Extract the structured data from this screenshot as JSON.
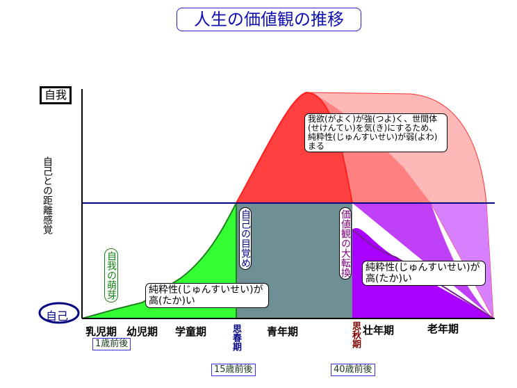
{
  "title": "人生の価値観の推移",
  "y_axis": {
    "top_label": "自我",
    "bottom_label": "自己",
    "axis_title": "自己との距離感覚"
  },
  "stages": [
    "乳児期",
    "幼児期",
    "学童期",
    "思春期",
    "青年期",
    "思秋期",
    "壮年期",
    "老年期"
  ],
  "ages": [
    "1歳前後",
    "15歳前後",
    "40歳前後"
  ],
  "annotations": {
    "ego_bud": "自我の萌芽",
    "self_awakening": "自己の目覚め",
    "value_shift": "価値観の大転換",
    "purity_high_1": "純粋性(じゅんすいせい)が高(たか)い",
    "purity_high_2": "純粋性(じゅんすいせい)が高(たか)い",
    "greed": "我欲(がよく)が強(つよ)く、世間体(せけんてい)を気(き)にするため、純粋性(じゅんすいせい)が弱(よわ)まる"
  },
  "colors": {
    "green": "#33ff33",
    "grey": "#6e9094",
    "red": "#ff4040",
    "purple": "#aa00ff",
    "navy": "#000080"
  }
}
